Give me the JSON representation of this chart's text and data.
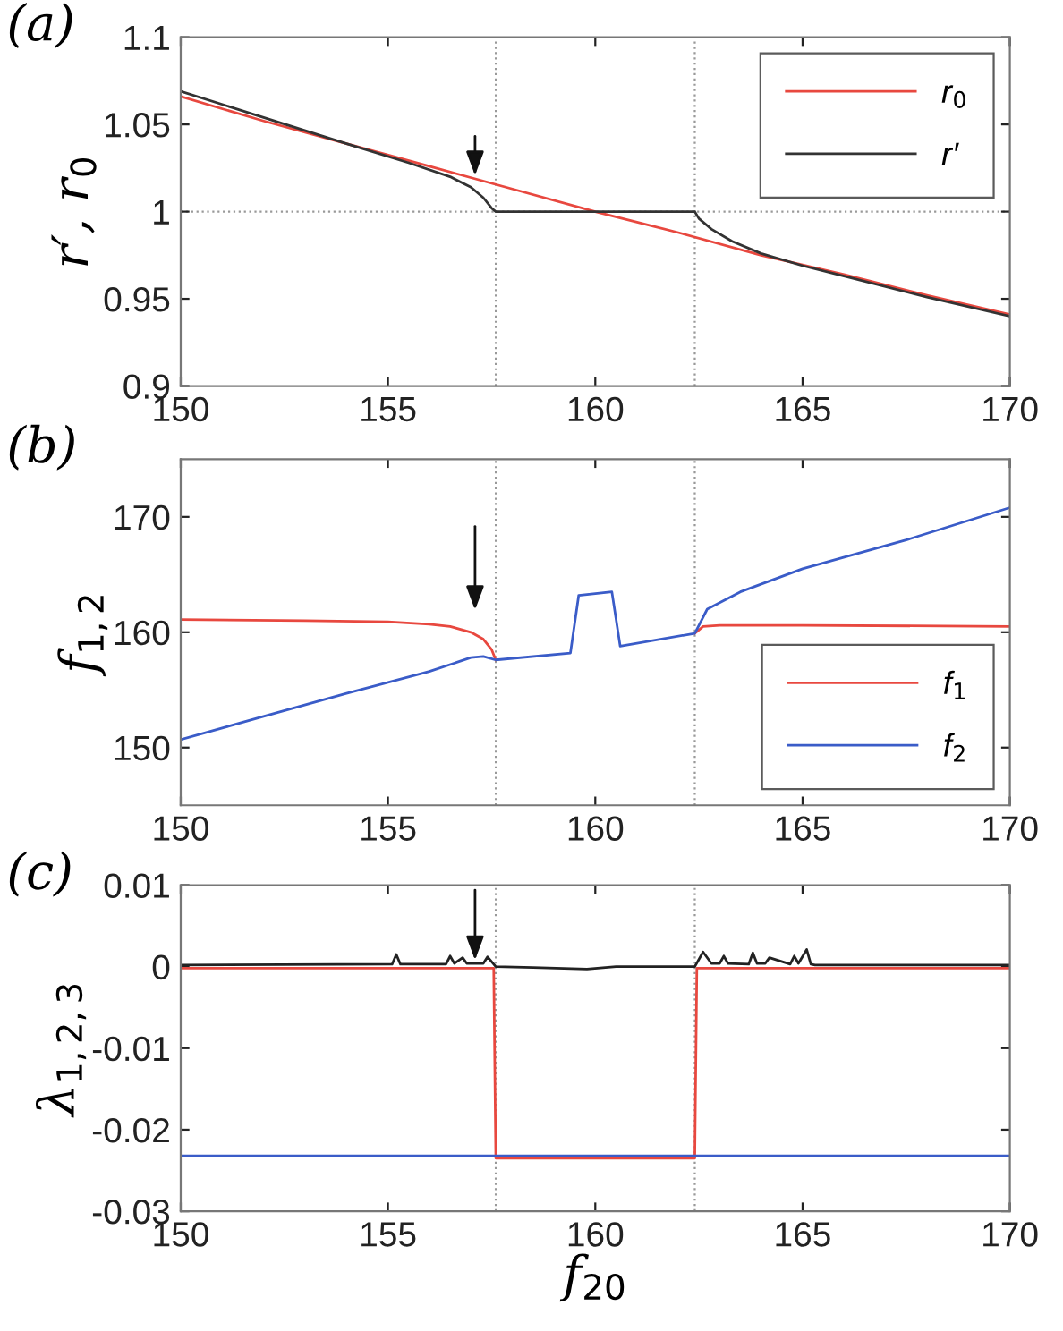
{
  "chart_data": [
    {
      "type": "line",
      "title": "(a)",
      "ylabel": "r′, r$_{0}$",
      "xlim": [
        150,
        170
      ],
      "xticks": [
        150,
        155,
        160,
        165,
        170
      ],
      "ylim": [
        0.9,
        1.1
      ],
      "yticks": [
        0.9,
        0.95,
        1,
        1.05,
        1.1
      ],
      "legend": "top right",
      "grid": false,
      "ref_lines": [
        {
          "axis": "x",
          "value": 157.6,
          "color": "#999999",
          "line_style": "dotted"
        },
        {
          "axis": "x",
          "value": 162.4,
          "color": "#999999",
          "line_style": "dotted"
        },
        {
          "axis": "y",
          "value": 1,
          "color": "#999999",
          "line_style": "dotted"
        }
      ],
      "series": [
        {
          "name": "r$_{0}$",
          "color": "#e8483f",
          "x": [
            150,
            152,
            154,
            156,
            158,
            160,
            162,
            164,
            166,
            168,
            170
          ],
          "values": [
            1.066,
            1.052,
            1.039,
            1.026,
            1.013,
            1.0,
            0.988,
            0.975,
            0.964,
            0.952,
            0.941
          ]
        },
        {
          "name": "r′",
          "color": "#333333",
          "x": [
            150,
            152,
            154,
            155.5,
            156.5,
            157,
            157.3,
            157.5,
            157.6,
            160,
            162.4,
            162.5,
            162.8,
            163.3,
            164,
            165,
            166,
            168,
            170
          ],
          "values": [
            1.069,
            1.054,
            1.039,
            1.028,
            1.02,
            1.014,
            1.008,
            1.002,
            1.0,
            1.0,
            1.0,
            0.996,
            0.99,
            0.983,
            0.976,
            0.969,
            0.963,
            0.951,
            0.94
          ]
        }
      ]
    },
    {
      "type": "line",
      "title": "(b)",
      "ylabel": "f$_{1,2}$",
      "xlim": [
        150,
        170
      ],
      "xticks": [
        150,
        155,
        160,
        165,
        170
      ],
      "ylim": [
        145,
        175
      ],
      "yticks": [
        150,
        160,
        170
      ],
      "legend": "bottom right",
      "grid": false,
      "ref_lines": [
        {
          "axis": "x",
          "value": 157.6,
          "color": "#999999",
          "line_style": "dotted"
        },
        {
          "axis": "x",
          "value": 162.4,
          "color": "#999999",
          "line_style": "dotted"
        }
      ],
      "series": [
        {
          "name": "f$_{1}$",
          "color": "#e8483f",
          "x": [
            150,
            153,
            155,
            156,
            156.5,
            157,
            157.3,
            157.5,
            157.6,
            159.4,
            159.6,
            160.4,
            160.6,
            162.4,
            162.6,
            163,
            165,
            170
          ],
          "values": [
            161.1,
            161.0,
            160.9,
            160.7,
            160.5,
            160.0,
            159.4,
            158.5,
            157.6,
            null,
            null,
            null,
            null,
            159.9,
            160.5,
            160.6,
            160.6,
            160.5
          ]
        },
        {
          "name": "f$_{2}$",
          "color": "#3a5cc8",
          "x": [
            150,
            152,
            154,
            156,
            157,
            157.3,
            157.6,
            159.4,
            159.6,
            160.4,
            160.6,
            162.4,
            162.7,
            163.5,
            165,
            167.5,
            170
          ],
          "values": [
            150.7,
            152.7,
            154.7,
            156.6,
            157.8,
            157.9,
            157.6,
            158.2,
            163.2,
            163.5,
            158.8,
            159.9,
            162.0,
            163.5,
            165.5,
            168.0,
            170.8
          ]
        }
      ]
    },
    {
      "type": "line",
      "title": "(c)",
      "xlabel": "f$_{20}$",
      "ylabel": "λ$_{1,2,3}$",
      "xlim": [
        150,
        170
      ],
      "xticks": [
        150,
        155,
        160,
        165,
        170
      ],
      "ylim": [
        -0.03,
        0.01
      ],
      "yticks": [
        -0.03,
        -0.02,
        -0.01,
        0,
        0.01
      ],
      "legend": false,
      "grid": false,
      "ref_lines": [
        {
          "axis": "x",
          "value": 157.6,
          "color": "#999999",
          "line_style": "dotted"
        },
        {
          "axis": "x",
          "value": 162.4,
          "color": "#999999",
          "line_style": "dotted"
        }
      ],
      "series": [
        {
          "color": "#e8483f",
          "x": [
            150,
            157.55,
            157.6,
            162.4,
            162.45,
            170
          ],
          "values": [
            -0.0002,
            -0.0002,
            -0.0235,
            -0.0235,
            -0.0002,
            -0.0002
          ]
        },
        {
          "color": "#3a5cc8",
          "x": [
            150,
            170
          ],
          "values": [
            -0.0232,
            -0.0232
          ]
        },
        {
          "color": "#222222",
          "x": [
            150,
            155.1,
            155.2,
            155.3,
            156.4,
            156.5,
            156.6,
            156.8,
            156.9,
            157.3,
            157.4,
            157.6,
            158.5,
            159.8,
            160.5,
            162.4,
            162.6,
            162.8,
            163,
            163.1,
            163.2,
            163.7,
            163.8,
            163.9,
            164.1,
            164.2,
            164.7,
            164.8,
            164.9,
            165.1,
            165.2,
            165.3,
            170
          ],
          "values": [
            0.0002,
            0.0003,
            0.0015,
            0.0003,
            0.0003,
            0.0013,
            0.0004,
            0.0011,
            0.0004,
            0.0004,
            0.0012,
            0.0,
            -0.0001,
            -0.0003,
            0.0,
            0.0,
            0.0018,
            0.0004,
            0.0004,
            0.0013,
            0.0004,
            0.0003,
            0.0017,
            0.0004,
            0.0004,
            0.0011,
            0.0003,
            0.0013,
            0.0004,
            0.0021,
            0.0003,
            0.0002,
            0.0002
          ]
        }
      ]
    }
  ]
}
